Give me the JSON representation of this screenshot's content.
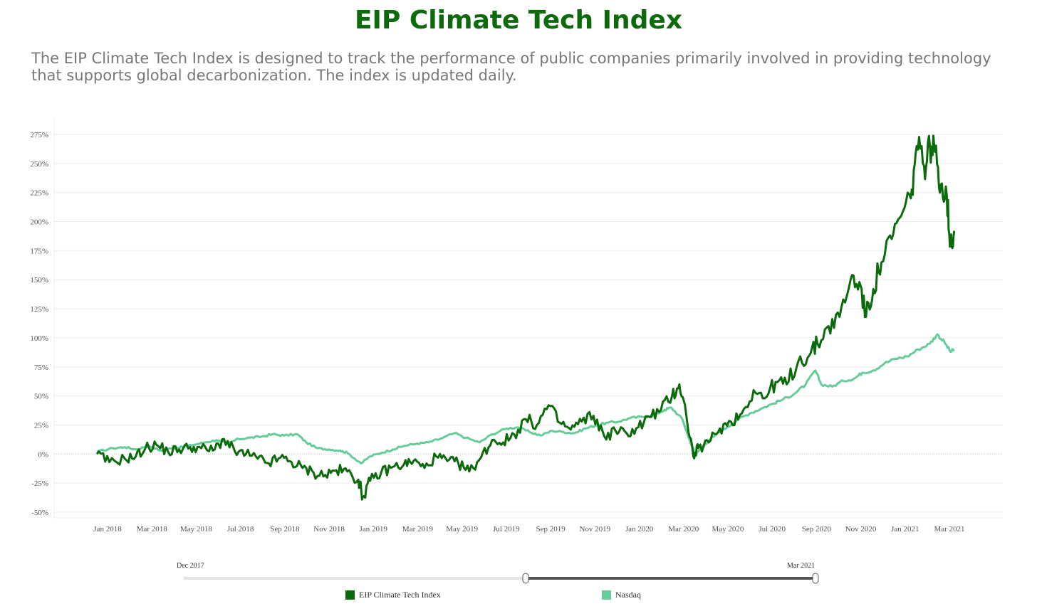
{
  "page": {
    "title": "EIP Climate Tech Index",
    "subtitle": "The EIP Climate Tech Index is designed to track the performance of public companies primarily involved in providing technology that supports global decarbonization. The index is updated daily."
  },
  "slider": {
    "start_label": "Dec 2017",
    "end_label": "Mar 2021"
  },
  "colors": {
    "title": "#0b6b0b",
    "eip": "#0b6b0b",
    "nasdaq": "#66cc99"
  },
  "chart_data": {
    "type": "line",
    "ylim": [
      -50,
      275
    ],
    "y_ticks": [
      275,
      250,
      225,
      200,
      175,
      150,
      125,
      100,
      75,
      50,
      25,
      0,
      -25,
      -50
    ],
    "y_tick_labels": [
      "275%",
      "250%",
      "225%",
      "200%",
      "175%",
      "150%",
      "125%",
      "100%",
      "75%",
      "50%",
      "25%",
      "0%",
      "-25%",
      "-50%"
    ],
    "x_tick_labels": [
      "Jan 2018",
      "Mar 2018",
      "May 2018",
      "Jul 2018",
      "Sep 2018",
      "Nov 2018",
      "Jan 2019",
      "Mar 2019",
      "May 2019",
      "Jul 2019",
      "Sep 2019",
      "Nov 2019",
      "Jan 2020",
      "Mar 2020",
      "May 2020",
      "Jul 2020",
      "Sep 2020",
      "Nov 2020",
      "Jan 2021",
      "Mar 2021"
    ],
    "x_range": [
      "2017-12-29",
      "2021-03-20"
    ],
    "legend_position": "bottom",
    "series": [
      {
        "name": "EIP Climate Tech Index",
        "color": "#0b6b0b",
        "points": [
          [
            "2017-12-29",
            0
          ],
          [
            "2018-01-15",
            -7
          ],
          [
            "2018-02-05",
            -4
          ],
          [
            "2018-02-20",
            -2
          ],
          [
            "2018-03-05",
            5
          ],
          [
            "2018-03-20",
            8
          ],
          [
            "2018-04-05",
            2
          ],
          [
            "2018-04-20",
            4
          ],
          [
            "2018-05-05",
            6
          ],
          [
            "2018-05-20",
            5
          ],
          [
            "2018-06-05",
            3
          ],
          [
            "2018-06-20",
            13
          ],
          [
            "2018-07-05",
            2
          ],
          [
            "2018-07-20",
            0
          ],
          [
            "2018-08-05",
            -4
          ],
          [
            "2018-08-20",
            -8
          ],
          [
            "2018-09-05",
            -3
          ],
          [
            "2018-09-20",
            -7
          ],
          [
            "2018-10-05",
            -12
          ],
          [
            "2018-10-20",
            -16
          ],
          [
            "2018-11-05",
            -18
          ],
          [
            "2018-11-20",
            -14
          ],
          [
            "2018-12-05",
            -15
          ],
          [
            "2018-12-20",
            -22
          ],
          [
            "2018-12-26",
            -37
          ],
          [
            "2019-01-05",
            -23
          ],
          [
            "2019-01-20",
            -16
          ],
          [
            "2019-02-05",
            -11
          ],
          [
            "2019-02-20",
            -9
          ],
          [
            "2019-03-05",
            -6
          ],
          [
            "2019-03-20",
            -12
          ],
          [
            "2019-04-05",
            -2
          ],
          [
            "2019-04-20",
            -6
          ],
          [
            "2019-05-05",
            -8
          ],
          [
            "2019-05-20",
            -15
          ],
          [
            "2019-06-05",
            -3
          ],
          [
            "2019-06-20",
            12
          ],
          [
            "2019-07-05",
            10
          ],
          [
            "2019-07-20",
            17
          ],
          [
            "2019-08-05",
            30
          ],
          [
            "2019-08-20",
            25
          ],
          [
            "2019-09-05",
            42
          ],
          [
            "2019-09-20",
            27
          ],
          [
            "2019-10-05",
            21
          ],
          [
            "2019-10-20",
            28
          ],
          [
            "2019-11-05",
            33
          ],
          [
            "2019-11-20",
            15
          ],
          [
            "2019-12-05",
            20
          ],
          [
            "2019-12-20",
            18
          ],
          [
            "2020-01-05",
            23
          ],
          [
            "2020-01-20",
            32
          ],
          [
            "2020-02-05",
            38
          ],
          [
            "2020-02-20",
            50
          ],
          [
            "2020-03-01",
            60
          ],
          [
            "2020-03-10",
            35
          ],
          [
            "2020-03-20",
            -2
          ],
          [
            "2020-03-27",
            5
          ],
          [
            "2020-04-10",
            10
          ],
          [
            "2020-04-25",
            22
          ],
          [
            "2020-05-10",
            28
          ],
          [
            "2020-05-25",
            35
          ],
          [
            "2020-06-10",
            55
          ],
          [
            "2020-06-25",
            48
          ],
          [
            "2020-07-10",
            62
          ],
          [
            "2020-07-25",
            60
          ],
          [
            "2020-08-10",
            80
          ],
          [
            "2020-08-25",
            85
          ],
          [
            "2020-09-05",
            95
          ],
          [
            "2020-09-20",
            110
          ],
          [
            "2020-10-05",
            118
          ],
          [
            "2020-10-20",
            150
          ],
          [
            "2020-11-01",
            148
          ],
          [
            "2020-11-10",
            118
          ],
          [
            "2020-11-20",
            142
          ],
          [
            "2020-12-01",
            165
          ],
          [
            "2020-12-15",
            185
          ],
          [
            "2020-12-28",
            205
          ],
          [
            "2021-01-10",
            220
          ],
          [
            "2021-01-18",
            265
          ],
          [
            "2021-01-28",
            248
          ],
          [
            "2021-02-05",
            265
          ],
          [
            "2021-02-12",
            260
          ],
          [
            "2021-02-20",
            232
          ],
          [
            "2021-02-28",
            222
          ],
          [
            "2021-03-05",
            180
          ],
          [
            "2021-03-10",
            192
          ]
        ]
      },
      {
        "name": "Nasdaq",
        "color": "#66cc99",
        "points": [
          [
            "2017-12-29",
            2
          ],
          [
            "2018-01-20",
            5
          ],
          [
            "2018-02-05",
            6
          ],
          [
            "2018-02-20",
            4
          ],
          [
            "2018-03-10",
            7
          ],
          [
            "2018-03-25",
            3
          ],
          [
            "2018-04-10",
            5
          ],
          [
            "2018-04-25",
            6
          ],
          [
            "2018-05-10",
            8
          ],
          [
            "2018-05-25",
            10
          ],
          [
            "2018-06-10",
            12
          ],
          [
            "2018-06-25",
            9
          ],
          [
            "2018-07-10",
            13
          ],
          [
            "2018-07-25",
            14
          ],
          [
            "2018-08-10",
            15
          ],
          [
            "2018-08-25",
            17
          ],
          [
            "2018-09-10",
            16
          ],
          [
            "2018-09-28",
            17
          ],
          [
            "2018-10-10",
            10
          ],
          [
            "2018-10-25",
            5
          ],
          [
            "2018-11-10",
            4
          ],
          [
            "2018-11-25",
            3
          ],
          [
            "2018-12-05",
            1
          ],
          [
            "2018-12-24",
            -8
          ],
          [
            "2019-01-05",
            -2
          ],
          [
            "2019-01-20",
            1
          ],
          [
            "2019-02-05",
            4
          ],
          [
            "2019-02-20",
            7
          ],
          [
            "2019-03-10",
            9
          ],
          [
            "2019-03-25",
            10
          ],
          [
            "2019-04-10",
            13
          ],
          [
            "2019-04-30",
            18
          ],
          [
            "2019-05-15",
            14
          ],
          [
            "2019-06-03",
            10
          ],
          [
            "2019-06-20",
            17
          ],
          [
            "2019-07-10",
            22
          ],
          [
            "2019-07-25",
            23
          ],
          [
            "2019-08-10",
            19
          ],
          [
            "2019-08-25",
            16
          ],
          [
            "2019-09-10",
            20
          ],
          [
            "2019-09-25",
            19
          ],
          [
            "2019-10-10",
            18
          ],
          [
            "2019-10-25",
            22
          ],
          [
            "2019-11-10",
            25
          ],
          [
            "2019-11-25",
            27
          ],
          [
            "2019-12-10",
            28
          ],
          [
            "2019-12-25",
            31
          ],
          [
            "2020-01-10",
            32
          ],
          [
            "2020-01-25",
            33
          ],
          [
            "2020-02-10",
            38
          ],
          [
            "2020-02-19",
            40
          ],
          [
            "2020-03-05",
            30
          ],
          [
            "2020-03-16",
            10
          ],
          [
            "2020-03-23",
            0
          ],
          [
            "2020-04-05",
            8
          ],
          [
            "2020-04-20",
            17
          ],
          [
            "2020-05-05",
            23
          ],
          [
            "2020-05-20",
            30
          ],
          [
            "2020-06-05",
            35
          ],
          [
            "2020-06-20",
            39
          ],
          [
            "2020-07-05",
            43
          ],
          [
            "2020-07-20",
            47
          ],
          [
            "2020-08-05",
            52
          ],
          [
            "2020-08-20",
            60
          ],
          [
            "2020-09-02",
            72
          ],
          [
            "2020-09-10",
            60
          ],
          [
            "2020-09-25",
            58
          ],
          [
            "2020-10-10",
            63
          ],
          [
            "2020-10-25",
            65
          ],
          [
            "2020-11-05",
            70
          ],
          [
            "2020-11-20",
            72
          ],
          [
            "2020-12-05",
            78
          ],
          [
            "2020-12-20",
            82
          ],
          [
            "2021-01-05",
            84
          ],
          [
            "2021-01-20",
            90
          ],
          [
            "2021-02-05",
            95
          ],
          [
            "2021-02-15",
            103
          ],
          [
            "2021-02-25",
            96
          ],
          [
            "2021-03-05",
            88
          ],
          [
            "2021-03-10",
            90
          ]
        ]
      }
    ]
  }
}
